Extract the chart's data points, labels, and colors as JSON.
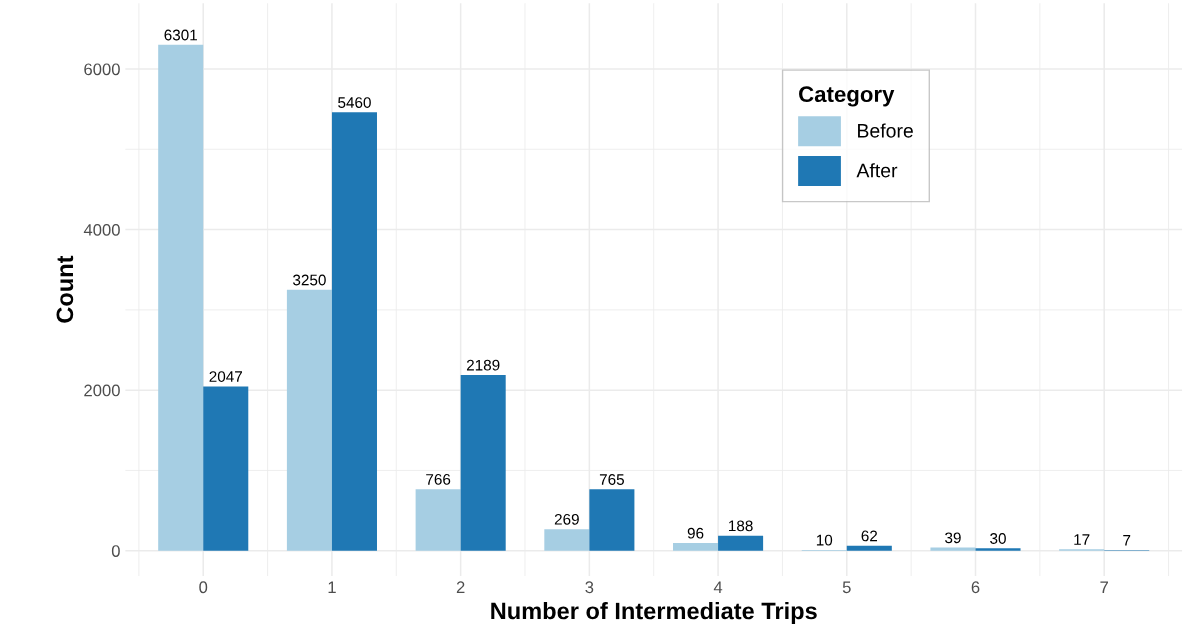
{
  "chart_data": {
    "type": "bar",
    "xlabel": "Number of Intermediate Trips",
    "ylabel": "Count",
    "legend_title": "Category",
    "categories": [
      "0",
      "1",
      "2",
      "3",
      "4",
      "5",
      "6",
      "7"
    ],
    "series": [
      {
        "name": "Before",
        "color": "#a6cee3",
        "values": [
          6301,
          3250,
          766,
          269,
          96,
          10,
          39,
          17
        ]
      },
      {
        "name": "After",
        "color": "#1f78b4",
        "values": [
          2047,
          5460,
          2189,
          765,
          188,
          62,
          30,
          7
        ]
      }
    ],
    "ylim": [
      -315,
      6820
    ],
    "yticks": [
      0,
      2000,
      4000,
      6000
    ],
    "grid": true,
    "legend": "top right",
    "data_labels": true
  }
}
